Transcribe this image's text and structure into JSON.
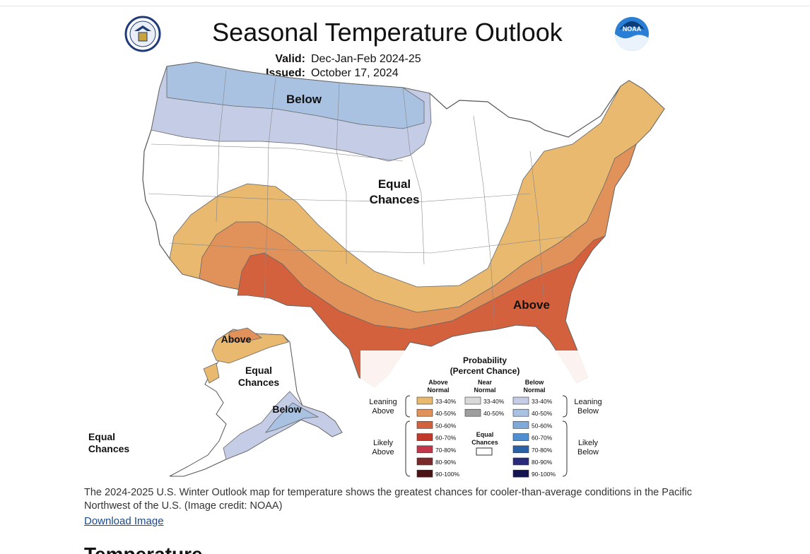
{
  "map": {
    "title": "Seasonal Temperature Outlook",
    "valid_label": "Valid:",
    "valid_value": "Dec-Jan-Feb 2024-25",
    "issued_label": "Issued:",
    "issued_value": "October 17, 2024",
    "left_logo_text": "DEPARTMENT OF COMMERCE",
    "right_logo_text": "NOAA",
    "region_labels": {
      "below_north": "Below",
      "equal_center_1": "Equal",
      "equal_center_2": "Chances",
      "above_southeast": "Above",
      "alaska_above": "Above",
      "alaska_equal_1": "Equal",
      "alaska_equal_2": "Chances",
      "alaska_below": "Below",
      "hawaii_equal_1": "Equal",
      "hawaii_equal_2": "Chances"
    },
    "colors": {
      "below_33_40": "#c5cde6",
      "below_40_50": "#a9c2e2",
      "above_33_40": "#e8b96f",
      "above_40_50": "#e0925a",
      "above_50_60": "#d4613e",
      "equal": "#ffffff",
      "outline": "#555555"
    },
    "legend": {
      "title_1": "Probability",
      "title_2": "(Percent Chance)",
      "col_above_1": "Above",
      "col_above_2": "Normal",
      "col_near_1": "Near",
      "col_near_2": "Normal",
      "col_below_1": "Below",
      "col_below_2": "Normal",
      "leaning_above_1": "Leaning",
      "leaning_above_2": "Above",
      "likely_above_1": "Likely",
      "likely_above_2": "Above",
      "leaning_below_1": "Leaning",
      "leaning_below_2": "Below",
      "likely_below_1": "Likely",
      "likely_below_2": "Below",
      "equal_1": "Equal",
      "equal_2": "Chances",
      "above_rows": [
        {
          "label": "33-40%",
          "color": "#e8b96f"
        },
        {
          "label": "40-50%",
          "color": "#e0925a"
        },
        {
          "label": "50-60%",
          "color": "#d4613e"
        },
        {
          "label": "60-70%",
          "color": "#c0392b"
        },
        {
          "label": "70-80%",
          "color": "#c4364a"
        },
        {
          "label": "80-90%",
          "color": "#7a2a2a"
        },
        {
          "label": "90-100%",
          "color": "#4a1414"
        }
      ],
      "near_rows": [
        {
          "label": "33-40%",
          "color": "#d9d9d9"
        },
        {
          "label": "40-50%",
          "color": "#9e9e9e"
        }
      ],
      "below_rows": [
        {
          "label": "33-40%",
          "color": "#c5cde6"
        },
        {
          "label": "40-50%",
          "color": "#a9c2e2"
        },
        {
          "label": "50-60%",
          "color": "#7fa9d9"
        },
        {
          "label": "60-70%",
          "color": "#4f8fcf"
        },
        {
          "label": "70-80%",
          "color": "#2a62a8"
        },
        {
          "label": "80-90%",
          "color": "#2a2a7a"
        },
        {
          "label": "90-100%",
          "color": "#141450"
        }
      ]
    }
  },
  "caption": "The 2024-2025 U.S. Winter Outlook map for temperature shows the greatest chances for cooler-than-average conditions in the Pacific Northwest of the U.S. (Image credit: NOAA)",
  "download_label": "Download Image",
  "next_heading": "Temperature"
}
